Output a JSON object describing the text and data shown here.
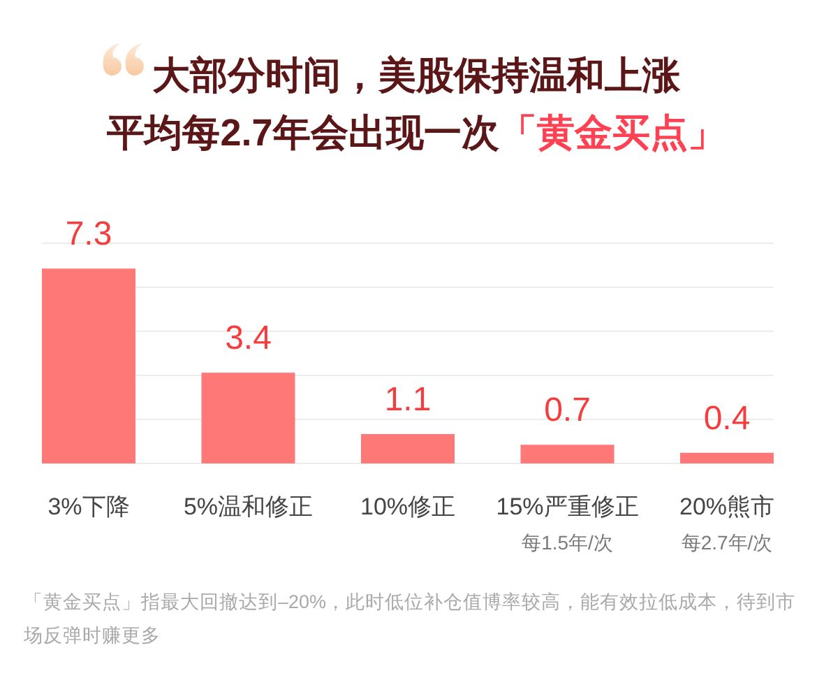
{
  "chart_data": {
    "type": "bar",
    "title": "大部分时间，美股保持温和上涨",
    "subtitle": "平均每2.7年会出现一次「黄金买点」",
    "categories": [
      "3%下降",
      "5%温和修正",
      "10%修正",
      "15%严重修正",
      "20%熊市"
    ],
    "values": [
      7.3,
      3.4,
      1.1,
      0.7,
      0.4
    ],
    "color": "#ff7878",
    "data_labels": true,
    "ylim": [
      0,
      8.25
    ],
    "yticks": [
      {
        "value": 0,
        "label": null
      },
      {
        "value": 1.65,
        "label": null
      },
      {
        "value": 3.3,
        "label": null
      },
      {
        "value": 4.95,
        "label": null
      },
      {
        "value": 6.6,
        "label": null
      },
      {
        "value": 8.25,
        "label": null
      }
    ],
    "grid": "y",
    "tick_labels": "x",
    "annotations": [
      "每1.5年/次",
      "每2.7年/次",
      "「黄金买点」指最大回撤达到–20%，此时低位补仓值博率较高，能有效拉低成本，待到市场反弹时赚更多"
    ]
  }
}
